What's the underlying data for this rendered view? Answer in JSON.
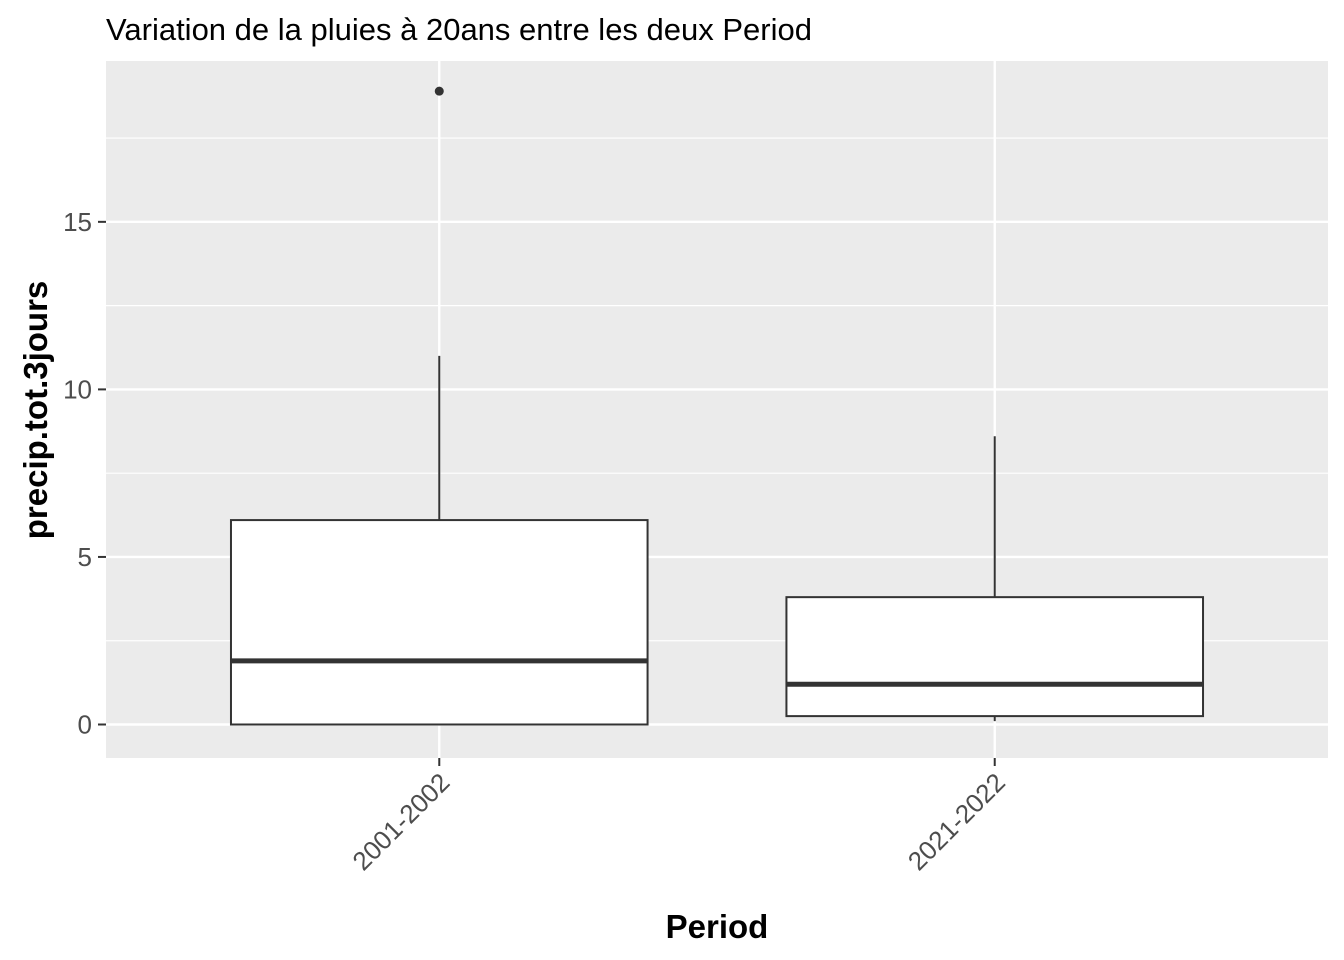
{
  "chart_data": {
    "type": "boxplot",
    "title": "Variation  de la pluies à 20ans entre les deux Period",
    "xlabel": "Period",
    "ylabel": "precip.tot.3jours",
    "categories": [
      "2001-2002",
      "2021-2022"
    ],
    "yticks": [
      0,
      5,
      10,
      15
    ],
    "ylim": [
      -1,
      19.8
    ],
    "grid": true,
    "boxes": [
      {
        "category": "2001-2002",
        "lower_whisker": 0,
        "q1": 0,
        "median": 1.9,
        "q3": 6.1,
        "upper_whisker": 11.0,
        "outliers": [
          18.9
        ]
      },
      {
        "category": "2021-2022",
        "lower_whisker": 0.1,
        "q1": 0.25,
        "median": 1.2,
        "q3": 3.8,
        "upper_whisker": 8.6,
        "outliers": []
      }
    ],
    "colors": {
      "panel": "#ebebeb",
      "grid": "#ffffff",
      "box_fill": "#ffffff",
      "box_stroke": "#333333",
      "axis_tick": "#333333",
      "tick_label": "#4d4d4d"
    }
  }
}
